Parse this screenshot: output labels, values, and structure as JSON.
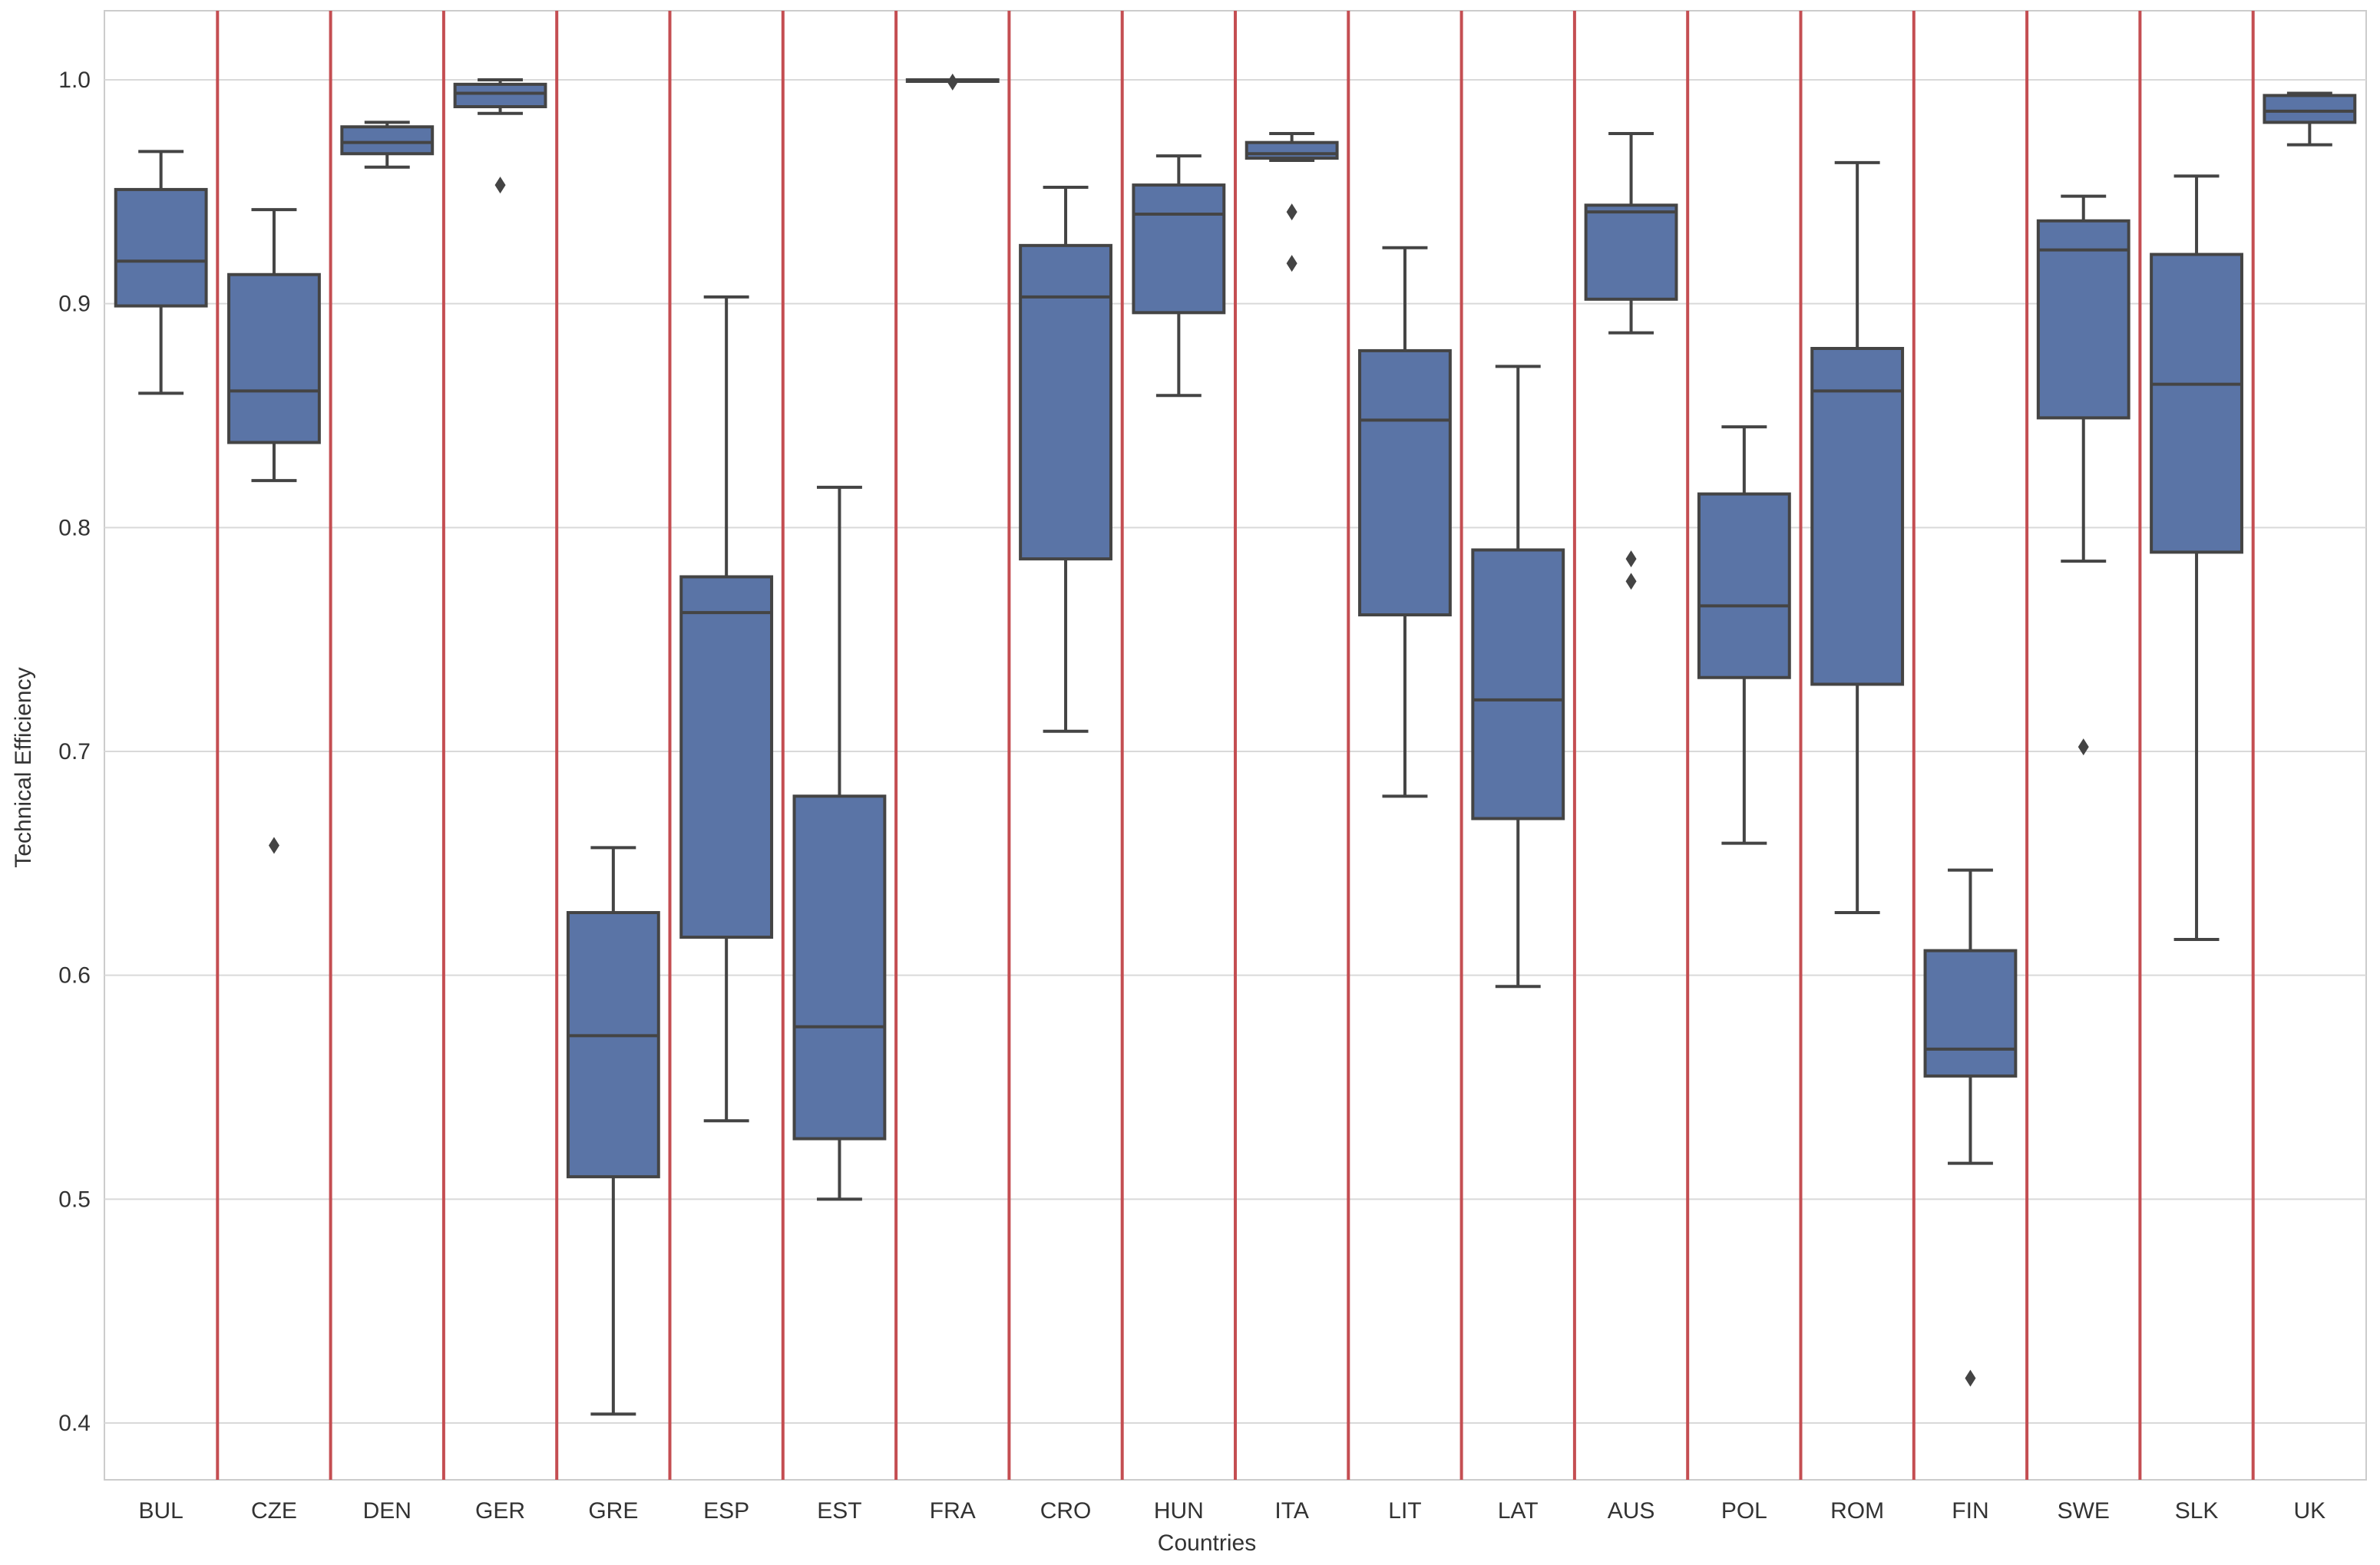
{
  "chart_data": {
    "type": "box",
    "title": "",
    "xlabel": "Countries",
    "ylabel": "Technical Efficiency",
    "ylim": [
      0.37,
      1.03
    ],
    "yticks": [
      "0.4",
      "0.5",
      "0.6",
      "0.7",
      "0.8",
      "0.9",
      "1.0"
    ],
    "grid": true,
    "colors": {
      "box": "#5a74a6",
      "line": "#444444",
      "separator": "#c44e52",
      "grid": "#d9d9d9"
    },
    "categories": [
      "BUL",
      "CZE",
      "DEN",
      "GER",
      "GRE",
      "ESP",
      "EST",
      "FRA",
      "CRO",
      "HUN",
      "ITA",
      "LIT",
      "LAT",
      "AUS",
      "POL",
      "ROM",
      "FIN",
      "SWE",
      "SLK",
      "UK"
    ],
    "boxes": [
      {
        "label": "BUL",
        "whisker_low": 0.86,
        "q1": 0.899,
        "median": 0.919,
        "q3": 0.951,
        "whisker_high": 0.968,
        "outliers": []
      },
      {
        "label": "CZE",
        "whisker_low": 0.821,
        "q1": 0.838,
        "median": 0.861,
        "q3": 0.913,
        "whisker_high": 0.942,
        "outliers": [
          0.658
        ]
      },
      {
        "label": "DEN",
        "whisker_low": 0.961,
        "q1": 0.967,
        "median": 0.972,
        "q3": 0.979,
        "whisker_high": 0.981,
        "outliers": []
      },
      {
        "label": "GER",
        "whisker_low": 0.985,
        "q1": 0.988,
        "median": 0.994,
        "q3": 0.998,
        "whisker_high": 1.0,
        "outliers": [
          0.953
        ]
      },
      {
        "label": "GRE",
        "whisker_low": 0.404,
        "q1": 0.51,
        "median": 0.573,
        "q3": 0.628,
        "whisker_high": 0.657,
        "outliers": []
      },
      {
        "label": "ESP",
        "whisker_low": 0.535,
        "q1": 0.617,
        "median": 0.762,
        "q3": 0.778,
        "whisker_high": 0.903,
        "outliers": []
      },
      {
        "label": "EST",
        "whisker_low": 0.5,
        "q1": 0.527,
        "median": 0.577,
        "q3": 0.68,
        "whisker_high": 0.818,
        "outliers": []
      },
      {
        "label": "FRA",
        "whisker_low": 1.0,
        "q1": 1.0,
        "median": 1.0,
        "q3": 1.0,
        "whisker_high": 1.0,
        "outliers": [
          0.999
        ]
      },
      {
        "label": "CRO",
        "whisker_low": 0.709,
        "q1": 0.786,
        "median": 0.903,
        "q3": 0.926,
        "whisker_high": 0.952,
        "outliers": []
      },
      {
        "label": "HUN",
        "whisker_low": 0.859,
        "q1": 0.896,
        "median": 0.94,
        "q3": 0.953,
        "whisker_high": 0.966,
        "outliers": []
      },
      {
        "label": "ITA",
        "whisker_low": 0.964,
        "q1": 0.965,
        "median": 0.967,
        "q3": 0.972,
        "whisker_high": 0.976,
        "outliers": [
          0.941,
          0.918
        ]
      },
      {
        "label": "LIT",
        "whisker_low": 0.68,
        "q1": 0.761,
        "median": 0.848,
        "q3": 0.879,
        "whisker_high": 0.925,
        "outliers": []
      },
      {
        "label": "LAT",
        "whisker_low": 0.595,
        "q1": 0.67,
        "median": 0.723,
        "q3": 0.79,
        "whisker_high": 0.872,
        "outliers": []
      },
      {
        "label": "AUS",
        "whisker_low": 0.887,
        "q1": 0.902,
        "median": 0.941,
        "q3": 0.944,
        "whisker_high": 0.976,
        "outliers": [
          0.786,
          0.776
        ]
      },
      {
        "label": "POL",
        "whisker_low": 0.659,
        "q1": 0.733,
        "median": 0.765,
        "q3": 0.815,
        "whisker_high": 0.845,
        "outliers": []
      },
      {
        "label": "ROM",
        "whisker_low": 0.628,
        "q1": 0.73,
        "median": 0.861,
        "q3": 0.88,
        "whisker_high": 0.963,
        "outliers": []
      },
      {
        "label": "FIN",
        "whisker_low": 0.516,
        "q1": 0.555,
        "median": 0.567,
        "q3": 0.611,
        "whisker_high": 0.647,
        "outliers": [
          0.42
        ]
      },
      {
        "label": "SWE",
        "whisker_low": 0.785,
        "q1": 0.849,
        "median": 0.924,
        "q3": 0.937,
        "whisker_high": 0.948,
        "outliers": [
          0.702
        ]
      },
      {
        "label": "SLK",
        "whisker_low": 0.616,
        "q1": 0.789,
        "median": 0.864,
        "q3": 0.922,
        "whisker_high": 0.957,
        "outliers": []
      },
      {
        "label": "UK",
        "whisker_low": 0.971,
        "q1": 0.981,
        "median": 0.986,
        "q3": 0.993,
        "whisker_high": 0.994,
        "outliers": []
      }
    ]
  }
}
